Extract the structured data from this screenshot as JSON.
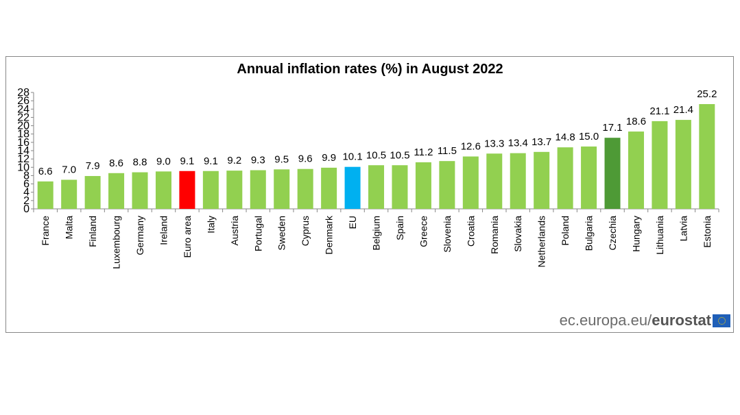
{
  "chart_data": {
    "type": "bar",
    "title": "Annual inflation rates (%) in August 2022",
    "categories": [
      "France",
      "Malta",
      "Finland",
      "Luxembourg",
      "Germany",
      "Ireland",
      "Euro area",
      "Italy",
      "Austria",
      "Portugal",
      "Sweden",
      "Cyprus",
      "Denmark",
      "EU",
      "Belgium",
      "Spain",
      "Greece",
      "Slovenia",
      "Croatia",
      "Romania",
      "Slovakia",
      "Netherlands",
      "Poland",
      "Bulgaria",
      "Czechia",
      "Hungary",
      "Lithuania",
      "Latvia",
      "Estonia"
    ],
    "values": [
      6.6,
      7.0,
      7.9,
      8.6,
      8.8,
      9.0,
      9.1,
      9.1,
      9.2,
      9.3,
      9.5,
      9.6,
      9.9,
      10.1,
      10.5,
      10.5,
      11.2,
      11.5,
      12.6,
      13.3,
      13.4,
      13.7,
      14.8,
      15.0,
      17.1,
      18.6,
      21.1,
      21.4,
      25.2
    ],
    "value_labels": [
      "6.6",
      "7.0",
      "7.9",
      "8.6",
      "8.8",
      "9.0",
      "9.1",
      "9.1",
      "9.2",
      "9.3",
      "9.5",
      "9.6",
      "9.9",
      "10.1",
      "10.5",
      "10.5",
      "11.2",
      "11.5",
      "12.6",
      "13.3",
      "13.4",
      "13.7",
      "14.8",
      "15.0",
      "17.1",
      "18.6",
      "21.1",
      "21.4",
      "25.2"
    ],
    "ylim": [
      0,
      28
    ],
    "yticks": [
      "0",
      "2",
      "4",
      "6",
      "8",
      "10",
      "12",
      "14",
      "16",
      "18",
      "20",
      "22",
      "24",
      "26",
      "28"
    ],
    "grid": false,
    "colors": {
      "default": "#92d050",
      "Euro area": "#ff0000",
      "EU": "#00b0f0",
      "Czechia": "#4e9a36"
    }
  },
  "credit": {
    "prefix": "ec.europa.eu/",
    "brand": "eurostat"
  }
}
